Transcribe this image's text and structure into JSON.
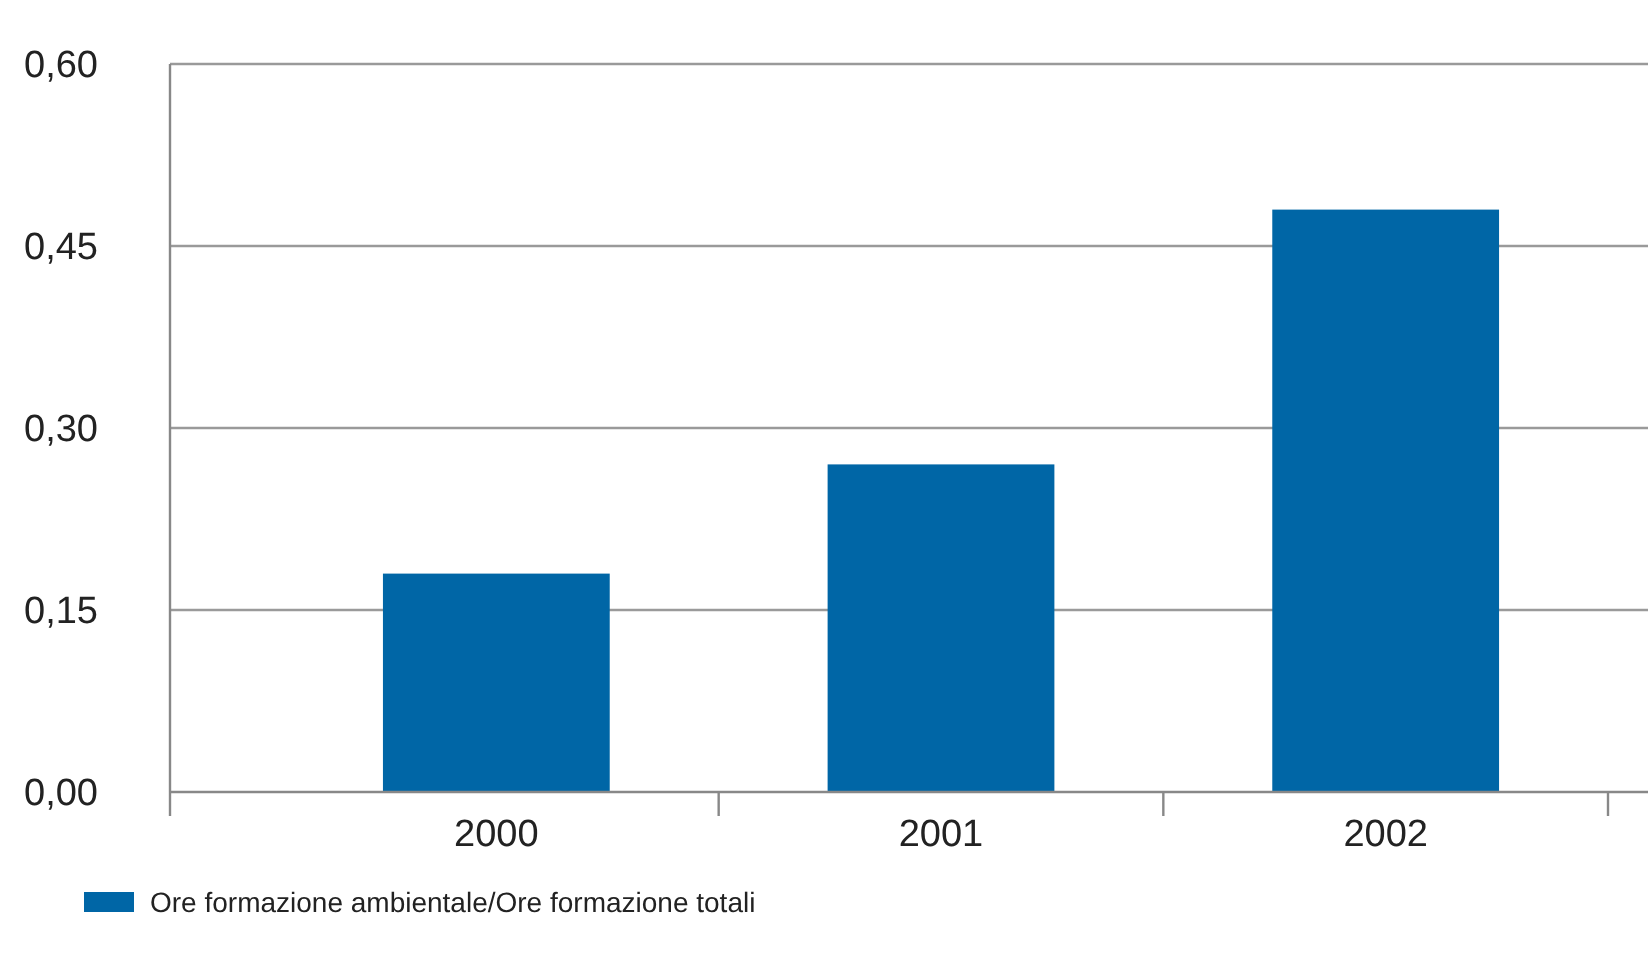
{
  "chart_data": {
    "type": "bar",
    "categories": [
      "2000",
      "2001",
      "2002"
    ],
    "series": [
      {
        "name": "Ore formazione ambientale/Ore formazione totali",
        "color": "#0066a6",
        "values": [
          0.18,
          0.27,
          0.48
        ]
      }
    ],
    "ylim": [
      0,
      0.6
    ],
    "yticks": [
      {
        "value": 0,
        "label": "0,00"
      },
      {
        "value": 0.15,
        "label": "0,15"
      },
      {
        "value": 0.3,
        "label": "0,30"
      },
      {
        "value": 0.45,
        "label": "0,45"
      },
      {
        "value": 0.6,
        "label": "0,60"
      }
    ],
    "grid": "y",
    "legend": "bottom left"
  }
}
